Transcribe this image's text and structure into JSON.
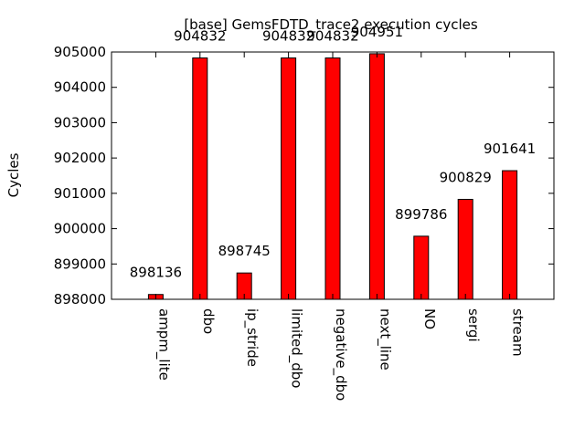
{
  "chart_data": {
    "type": "bar",
    "title": "[base] GemsFDTD_trace2 execution cycles",
    "xlabel": "",
    "ylabel": "Cycles",
    "categories": [
      "ampm_lite",
      "dbo",
      "ip_stride",
      "limited_dbo",
      "negative_dbo",
      "next_line",
      "NO",
      "sergi",
      "stream"
    ],
    "values": [
      898136,
      904832,
      898745,
      904832,
      904832,
      904951,
      899786,
      900829,
      901641
    ],
    "data_labels": [
      "898136",
      "904832",
      "898745",
      "904832",
      "904832",
      "904951",
      "899786",
      "900829",
      "901641"
    ],
    "ylim": [
      898000,
      905000
    ],
    "yticks": [
      898000,
      899000,
      900000,
      901000,
      902000,
      903000,
      904000,
      905000
    ],
    "ytick_labels": [
      "898000",
      "899000",
      "900000",
      "901000",
      "902000",
      "903000",
      "904000",
      "905000"
    ],
    "grid": false,
    "legend": "none",
    "bar_color": "#ff0000"
  }
}
